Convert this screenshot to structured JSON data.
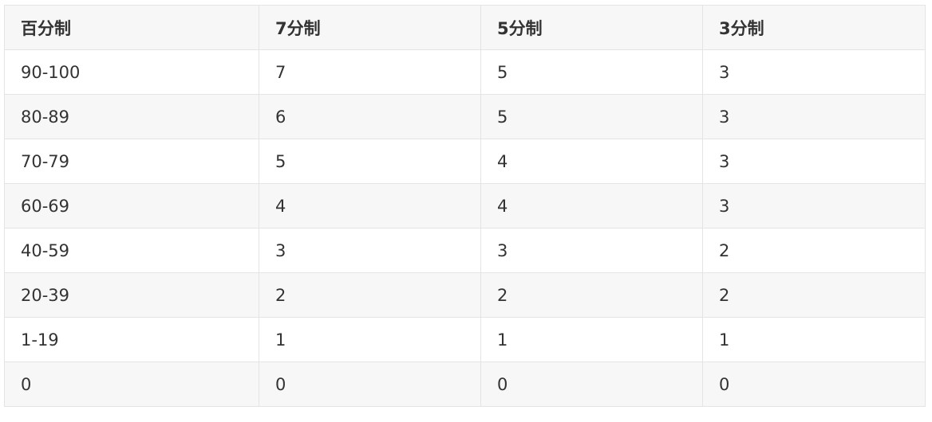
{
  "table": {
    "headers": [
      "百分制",
      "7分制",
      "5分制",
      "3分制"
    ],
    "rows": [
      [
        "90-100",
        "7",
        "5",
        "3"
      ],
      [
        "80-89",
        "6",
        "5",
        "3"
      ],
      [
        "70-79",
        "5",
        "4",
        "3"
      ],
      [
        "60-69",
        "4",
        "4",
        "3"
      ],
      [
        "40-59",
        "3",
        "3",
        "2"
      ],
      [
        "20-39",
        "2",
        "2",
        "2"
      ],
      [
        "1-19",
        "1",
        "1",
        "1"
      ],
      [
        "0",
        "0",
        "0",
        "0"
      ]
    ]
  }
}
